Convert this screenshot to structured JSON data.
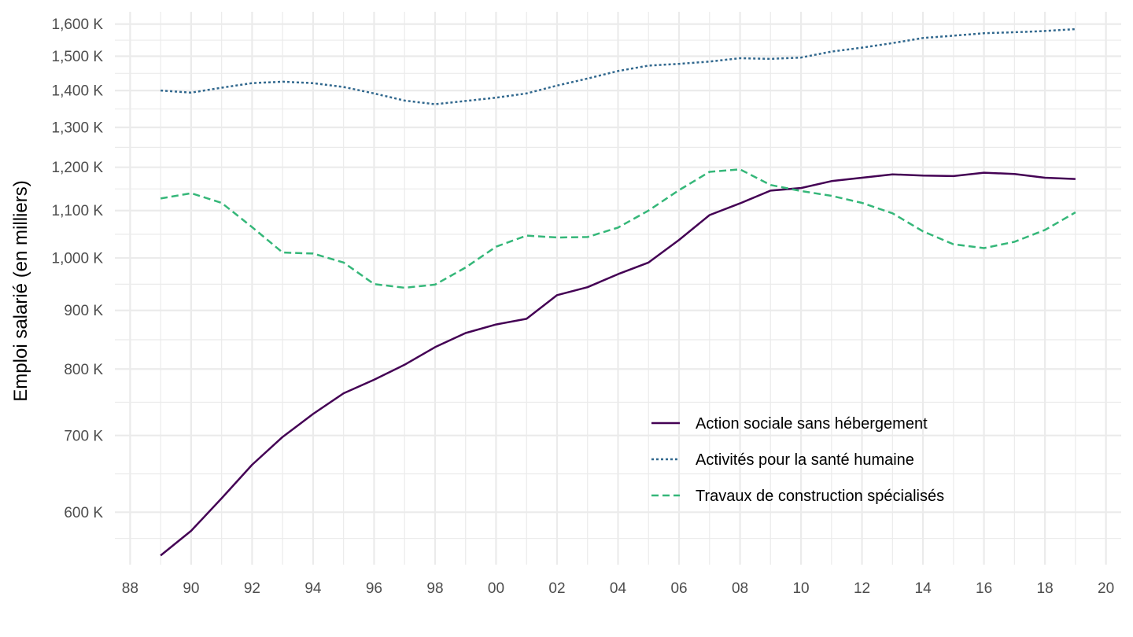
{
  "chart_data": {
    "type": "line",
    "ylabel": "Emploi salarié (en milliers)",
    "y_scale": "log",
    "ylim": [
      540,
      1640
    ],
    "xlim": [
      1987.5,
      2020.5
    ],
    "x_tick_values": [
      1988,
      1990,
      1992,
      1994,
      1996,
      1998,
      2000,
      2002,
      2004,
      2006,
      2008,
      2010,
      2012,
      2014,
      2016,
      2018,
      2020
    ],
    "x_tick_labels": [
      "88",
      "90",
      "92",
      "94",
      "96",
      "98",
      "00",
      "02",
      "04",
      "06",
      "08",
      "10",
      "12",
      "14",
      "16",
      "18",
      "20"
    ],
    "y_tick_values": [
      600,
      700,
      800,
      900,
      1000,
      1100,
      1200,
      1300,
      1400,
      1500,
      1600
    ],
    "y_tick_labels": [
      "600 K",
      "700 K",
      "800 K",
      "900 K",
      "1,000 K",
      "1,100 K",
      "1,200 K",
      "1,300 K",
      "1,400 K",
      "1,500 K",
      "1,600 K"
    ],
    "grid": true,
    "legend_position": "bottom-right",
    "x": [
      1989,
      1990,
      1991,
      1992,
      1993,
      1994,
      1995,
      1996,
      1997,
      1998,
      1999,
      2000,
      2001,
      2002,
      2003,
      2004,
      2005,
      2006,
      2007,
      2008,
      2009,
      2010,
      2011,
      2012,
      2013,
      2014,
      2015,
      2016,
      2017,
      2018,
      2019
    ],
    "series": [
      {
        "name": "Action sociale sans hébergement",
        "color": "#440154",
        "dash": "solid",
        "values": [
          550,
          578,
          617,
          660,
          698,
          731,
          762,
          783,
          807,
          836,
          860,
          875,
          885,
          928,
          943,
          968,
          991,
          1037,
          1090,
          1116,
          1145,
          1151,
          1167,
          1175,
          1183,
          1180,
          1179,
          1187,
          1184,
          1175,
          1172
        ]
      },
      {
        "name": "Activités pour la santé humaine",
        "color": "#31688e",
        "dash": "dotted",
        "values": [
          1400,
          1394,
          1408,
          1421,
          1425,
          1421,
          1410,
          1392,
          1372,
          1362,
          1371,
          1380,
          1392,
          1414,
          1434,
          1456,
          1472,
          1477,
          1484,
          1494,
          1492,
          1496,
          1514,
          1526,
          1540,
          1556,
          1563,
          1571,
          1574,
          1578,
          1584
        ]
      },
      {
        "name": "Travaux de construction spécialisés",
        "color": "#35b779",
        "dash": "dashed",
        "values": [
          1127,
          1139,
          1117,
          1064,
          1011,
          1009,
          991,
          949,
          942,
          948,
          981,
          1023,
          1046,
          1042,
          1043,
          1063,
          1100,
          1146,
          1189,
          1195,
          1158,
          1144,
          1133,
          1117,
          1094,
          1055,
          1028,
          1020,
          1033,
          1058,
          1096
        ]
      }
    ]
  }
}
